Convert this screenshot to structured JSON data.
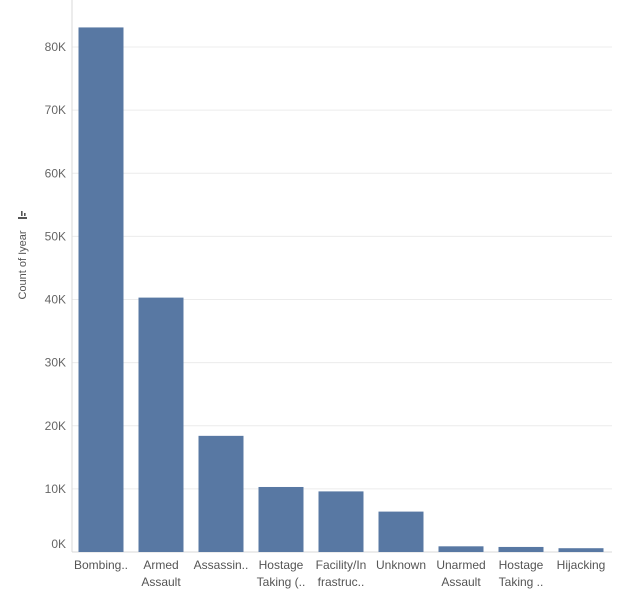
{
  "chart_data": {
    "type": "bar",
    "title": "",
    "xlabel": "",
    "ylabel": "Count of Iyear",
    "categories": [
      [
        "Bombing.."
      ],
      [
        "Armed",
        "Assault"
      ],
      [
        "Assassin.."
      ],
      [
        "Hostage",
        "Taking (.."
      ],
      [
        "Facility/In",
        "frastruc.."
      ],
      [
        "Unknown"
      ],
      [
        "Unarmed",
        "Assault"
      ],
      [
        "Hostage",
        "Taking .."
      ],
      [
        "Hijacking"
      ]
    ],
    "values": [
      83100,
      40300,
      18400,
      10300,
      9600,
      6400,
      900,
      800,
      600
    ],
    "ylim": [
      0,
      90000
    ],
    "yticks": [
      0,
      10000,
      20000,
      30000,
      40000,
      50000,
      60000,
      70000,
      80000
    ],
    "ytick_labels": [
      "0K",
      "10K",
      "20K",
      "30K",
      "40K",
      "50K",
      "60K",
      "70K",
      "80K"
    ],
    "grid": true,
    "colors": {
      "bar": "#5878a3",
      "grid": "#ececec",
      "text": "#666666"
    }
  }
}
